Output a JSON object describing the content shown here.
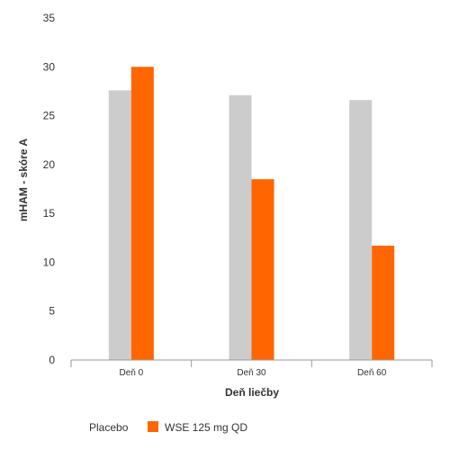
{
  "chart_data": {
    "type": "bar",
    "title": "",
    "xlabel": "Deň liečby",
    "ylabel": "mHAM - skóre A",
    "categories": [
      "Deň  0",
      "Deň 30",
      "Deň 60"
    ],
    "series": [
      {
        "name": "Placebo",
        "values": [
          27.6,
          27.1,
          26.6
        ],
        "color": "#cccccc"
      },
      {
        "name": "WSE 125 mg QD",
        "values": [
          30,
          18.5,
          11.7
        ],
        "color": "#ff6600"
      }
    ],
    "ylim": [
      0,
      35
    ],
    "yticks": [
      0,
      5,
      10,
      15,
      20,
      25,
      30,
      35
    ],
    "grid": false,
    "legend_position": "bottom-left"
  }
}
